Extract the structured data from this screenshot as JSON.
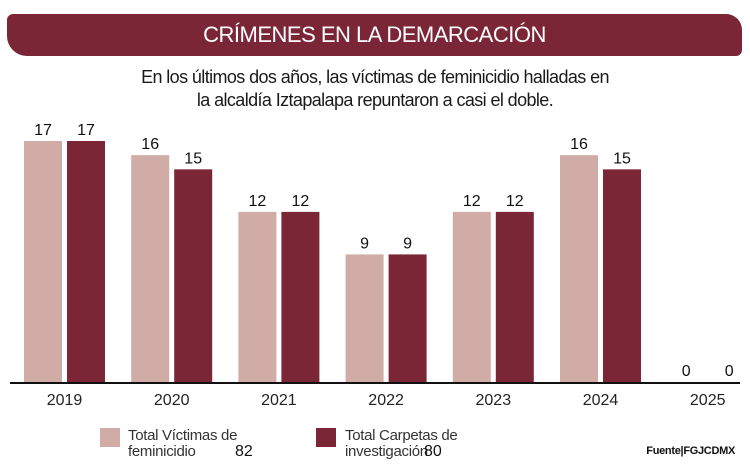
{
  "header": {
    "title": "CRÍMENES EN LA DEMARCACIÓN"
  },
  "subtitle": {
    "line1": "En los últimos dos años, las víctimas de feminicidio halladas en",
    "line2": "la alcaldía Iztapalapa repuntaron a casi el doble."
  },
  "chart_data": {
    "type": "bar",
    "categories": [
      "2019",
      "2020",
      "2021",
      "2022",
      "2023",
      "2024",
      "2025"
    ],
    "series": [
      {
        "name": "Total Víctimas de feminicidio",
        "values": [
          17,
          16,
          12,
          9,
          12,
          16,
          0
        ],
        "color": "#d1aba6"
      },
      {
        "name": "Total Carpetas de investigación",
        "values": [
          17,
          15,
          12,
          9,
          12,
          15,
          0
        ],
        "color": "#7a2637"
      }
    ],
    "ylim": [
      0,
      17
    ],
    "grid": false,
    "data_labels": true,
    "legend_placement": "bottom"
  },
  "legend": [
    {
      "line1": "Total Víctimas de",
      "line2": "feminicidio",
      "total": "82",
      "color": "#d1aba6"
    },
    {
      "line1": "Total Carpetas de",
      "line2": "investigación",
      "total": "80",
      "color": "#7a2637"
    }
  ],
  "source": "Fuente|FGJCDMX"
}
